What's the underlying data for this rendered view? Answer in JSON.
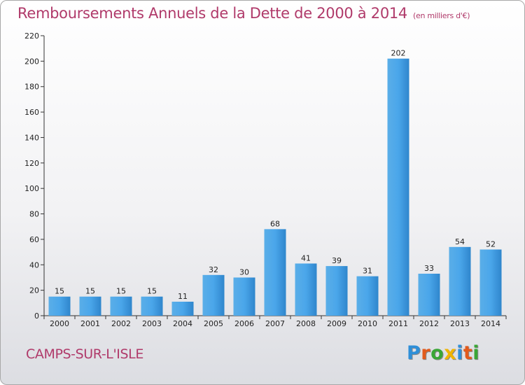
{
  "header": {
    "title": "Remboursements Annuels de la Dette de 2000 à 2014",
    "unit": "(en milliers d'€)"
  },
  "commune": "CAMPS-SUR-L'ISLE",
  "logo": {
    "letters": [
      "P",
      "r",
      "o",
      "x",
      "i",
      "t",
      "i"
    ],
    "colors": [
      "#2f8fd8",
      "#e25a1c",
      "#3aa636",
      "#f0b400",
      "#2f8fd8",
      "#e25a1c",
      "#3aa636"
    ]
  },
  "chart_data": {
    "type": "bar",
    "title": "Remboursements Annuels de la Dette de 2000 à 2014",
    "categories": [
      "2000",
      "2001",
      "2002",
      "2003",
      "2004",
      "2005",
      "2006",
      "2007",
      "2008",
      "2009",
      "2010",
      "2011",
      "2012",
      "2013",
      "2014"
    ],
    "values": [
      15,
      15,
      15,
      15,
      11,
      32,
      30,
      68,
      41,
      39,
      31,
      202,
      33,
      54,
      52
    ],
    "ylim": [
      0,
      220
    ],
    "yticks": [
      0,
      20,
      40,
      60,
      80,
      100,
      120,
      140,
      160,
      180,
      200,
      220
    ],
    "grid": false,
    "bar_color": "#3d9ee6"
  }
}
